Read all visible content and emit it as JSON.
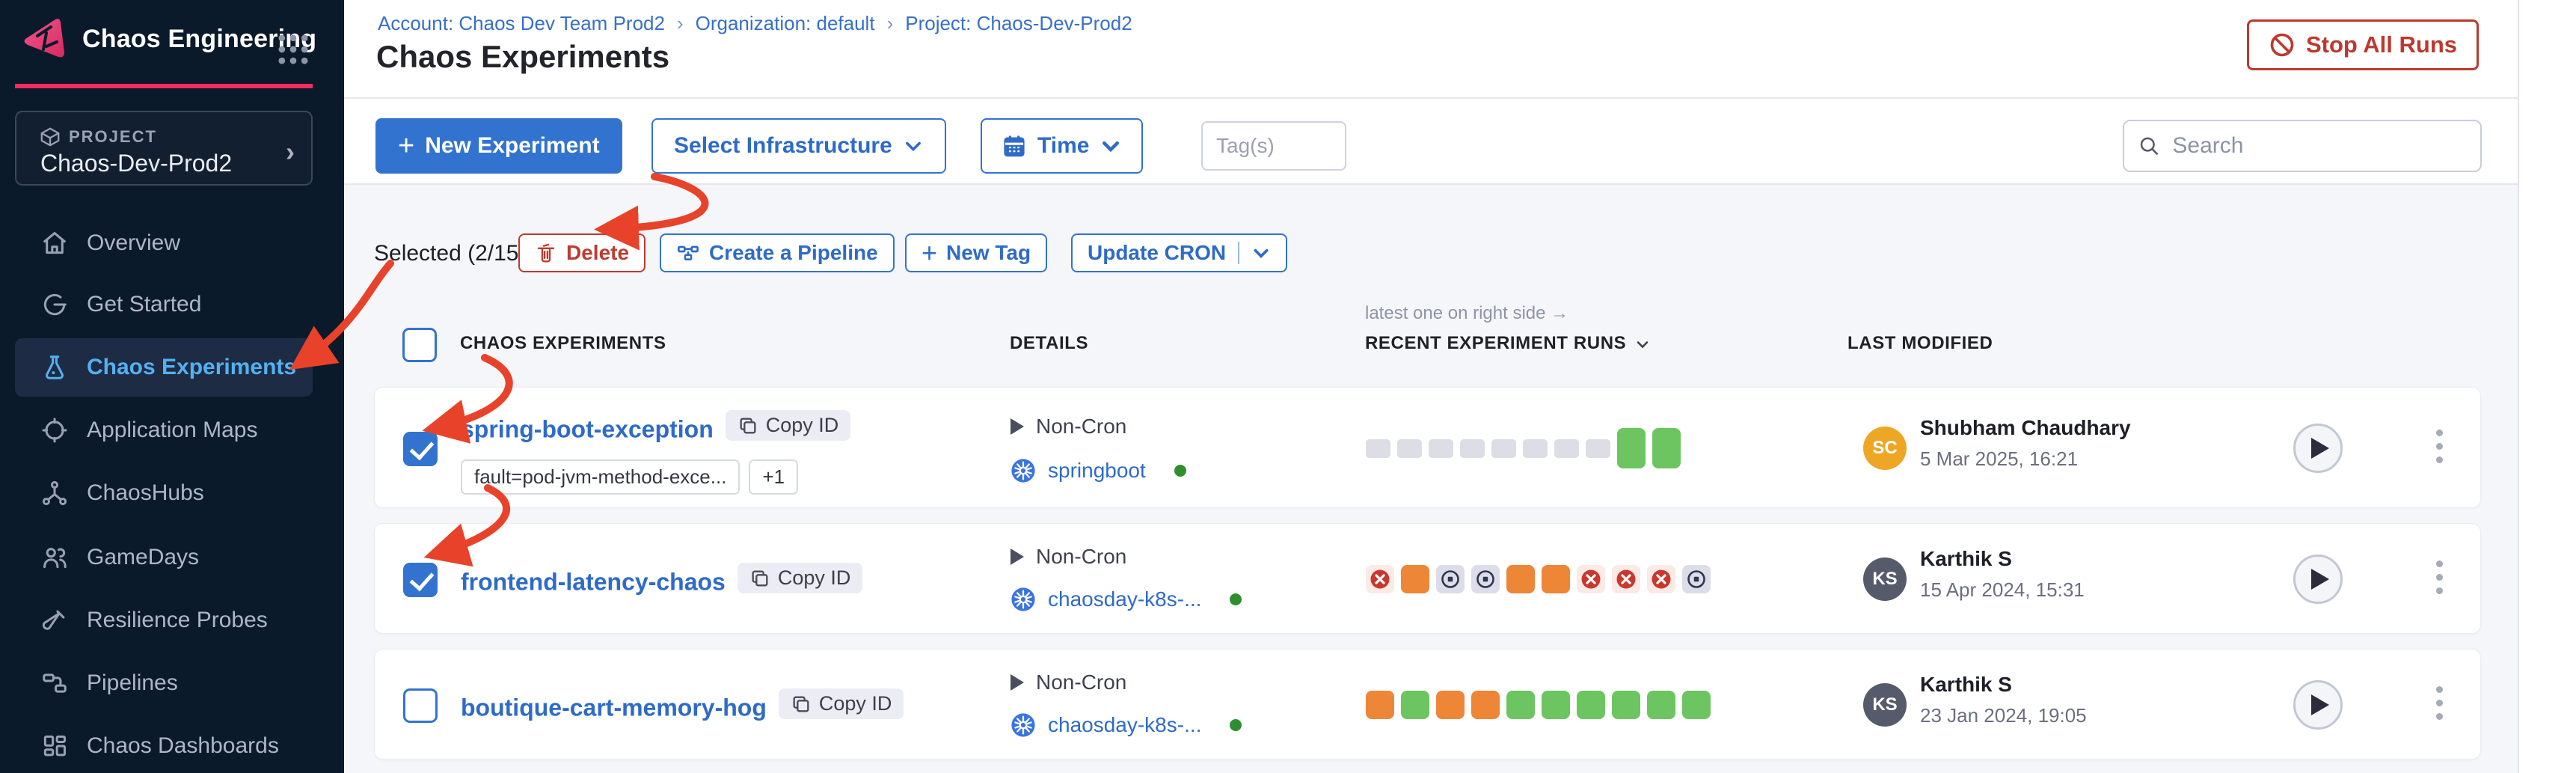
{
  "icons": {
    "plus": "+",
    "breadcrumb_separator": "›",
    "note_arrow": "→",
    "project_chevron": "›"
  },
  "colors": {
    "primary_blue": "#3273d0",
    "link_blue": "#2e6bc7",
    "danger_red": "#bf3a2e",
    "annotation_red": "#e8432a",
    "success_green": "#6cc561",
    "running_orange": "#ee8638",
    "failed_red": "#cb372c",
    "brand_pink": "#f92b5f",
    "sidebar_bg": "#0b1a2b"
  },
  "sidebar": {
    "app_title": "Chaos Engineering",
    "project_label": "PROJECT",
    "project_name": "Chaos-Dev-Prod2",
    "items": [
      {
        "label": "Overview"
      },
      {
        "label": "Get Started"
      },
      {
        "label": "Chaos Experiments"
      },
      {
        "label": "Application Maps"
      },
      {
        "label": "ChaosHubs"
      },
      {
        "label": "GameDays"
      },
      {
        "label": "Resilience Probes"
      },
      {
        "label": "Pipelines"
      },
      {
        "label": "Chaos Dashboards"
      }
    ]
  },
  "header": {
    "breadcrumb": {
      "account": "Account: Chaos Dev Team Prod2",
      "org": "Organization: default",
      "project": "Project: Chaos-Dev-Prod2"
    },
    "title": "Chaos Experiments",
    "stop_all_runs": "Stop All Runs"
  },
  "toolbar": {
    "new_experiment": "New Experiment",
    "select_infrastructure": "Select Infrastructure",
    "time": "Time",
    "tags_placeholder": "Tag(s)",
    "search_placeholder": "Search"
  },
  "selection": {
    "label": "Selected (2/15)",
    "delete": "Delete",
    "create_pipeline": "Create a Pipeline",
    "new_tag": "New Tag",
    "update_cron": "Update CRON"
  },
  "table": {
    "note": "latest one on right side",
    "headers": {
      "experiments": "CHAOS EXPERIMENTS",
      "details": "DETAILS",
      "recent_runs": "RECENT EXPERIMENT RUNS",
      "last_modified": "LAST MODIFIED"
    },
    "rows": [
      {
        "name": "spring-boot-exception",
        "copy_id": "Copy ID",
        "checked": true,
        "tags": [
          "fault=pod-jvm-method-exce...",
          "+1"
        ],
        "cron": "Non-Cron",
        "infra": "springboot",
        "runs": [
          "none",
          "none",
          "none",
          "none",
          "none",
          "none",
          "none",
          "none",
          "success",
          "success"
        ],
        "modified_by": {
          "initials": "SC",
          "name": "Shubham Chaudhary",
          "date": "5 Mar 2025, 16:21",
          "color": "#eda725"
        }
      },
      {
        "name": "frontend-latency-chaos",
        "copy_id": "Copy ID",
        "checked": true,
        "tags": [],
        "cron": "Non-Cron",
        "infra": "chaosday-k8s-...",
        "runs": [
          "failed",
          "running",
          "stopped",
          "stopped",
          "running",
          "running",
          "failed",
          "failed",
          "failed",
          "stopped"
        ],
        "modified_by": {
          "initials": "KS",
          "name": "Karthik S",
          "date": "15 Apr 2024, 15:31",
          "color": "#565b6c"
        }
      },
      {
        "name": "boutique-cart-memory-hog",
        "copy_id": "Copy ID",
        "checked": false,
        "tags": [],
        "cron": "Non-Cron",
        "infra": "chaosday-k8s-...",
        "runs": [
          "running",
          "success",
          "running",
          "running",
          "success",
          "success",
          "success",
          "success",
          "success",
          "success"
        ],
        "modified_by": {
          "initials": "KS",
          "name": "Karthik S",
          "date": "23 Jan 2024, 19:05",
          "color": "#565b6c"
        }
      }
    ]
  }
}
